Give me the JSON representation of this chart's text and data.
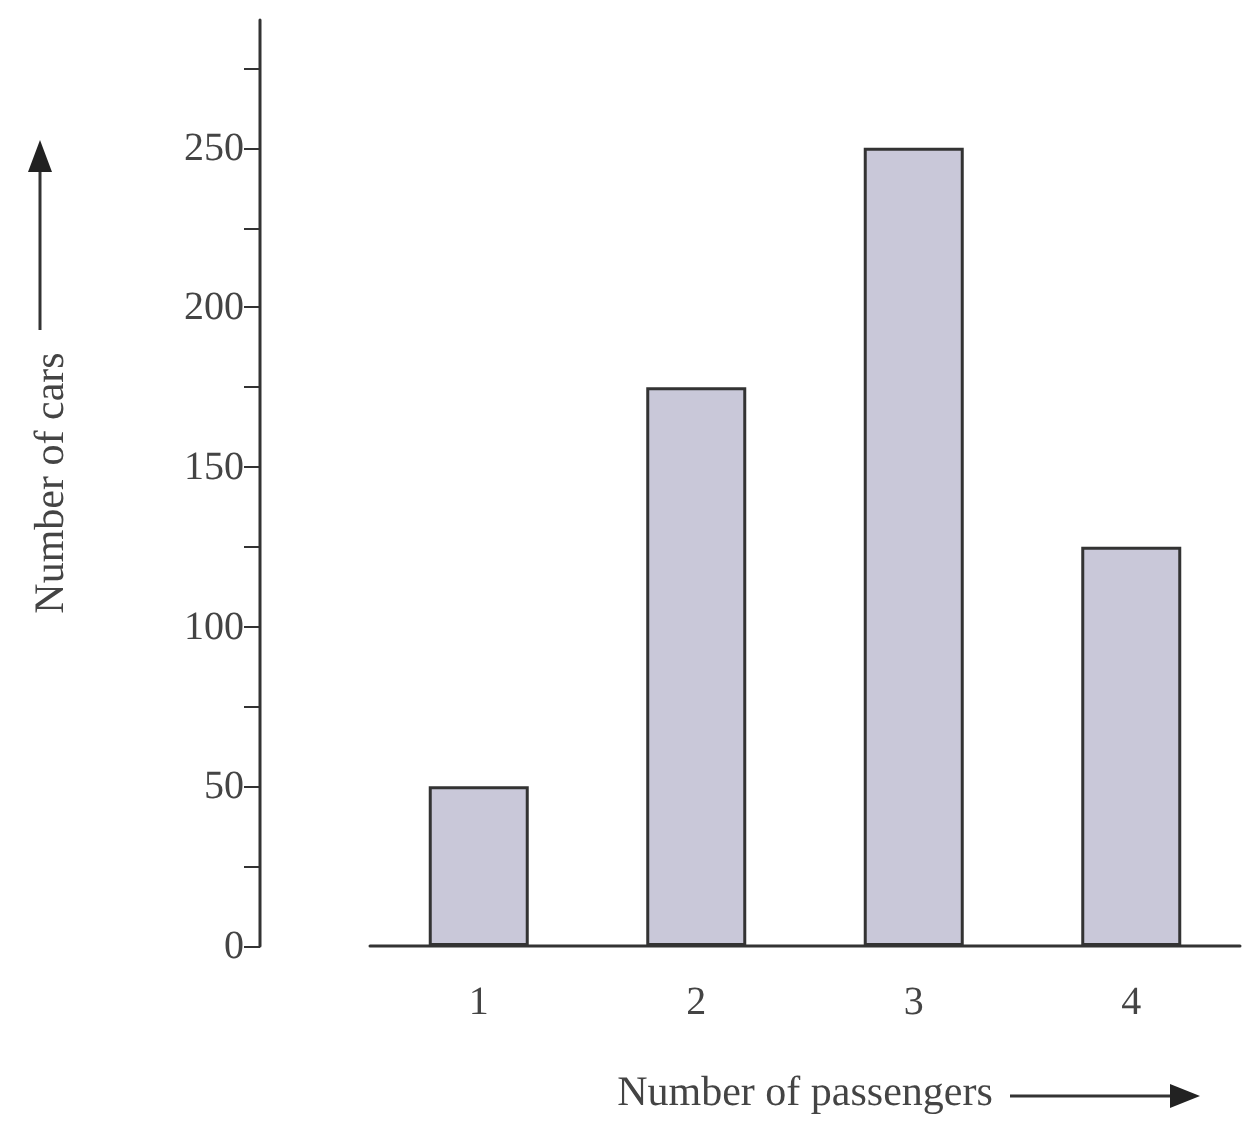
{
  "chart_data": {
    "type": "bar",
    "xlabel": "Number of passengers",
    "ylabel": "Number of cars",
    "categories": [
      "1",
      "2",
      "3",
      "4"
    ],
    "values": [
      50,
      175,
      250,
      125
    ],
    "color": "#c9c8d9",
    "ylim": [
      0,
      290
    ],
    "yticks": [
      0,
      50,
      100,
      150,
      200,
      250
    ],
    "grid": false
  }
}
